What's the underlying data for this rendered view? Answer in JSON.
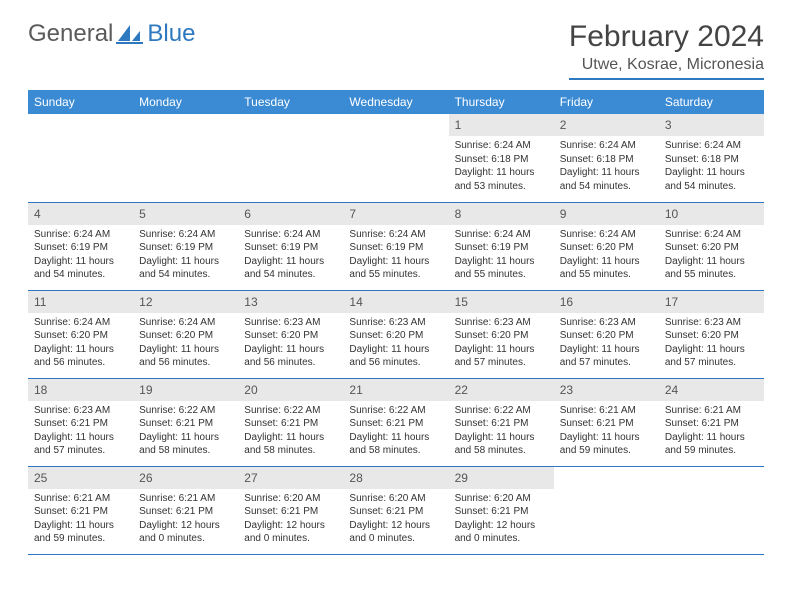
{
  "logo": {
    "part1": "General",
    "part2": "Blue"
  },
  "title": "February 2024",
  "location": "Utwe, Kosrae, Micronesia",
  "colors": {
    "accent": "#3b8bd4",
    "underline": "#2e78c0",
    "dayHeaderBg": "#e8e8e8"
  },
  "dayHeaders": [
    "Sunday",
    "Monday",
    "Tuesday",
    "Wednesday",
    "Thursday",
    "Friday",
    "Saturday"
  ],
  "labels": {
    "sunrise": "Sunrise: ",
    "sunset": "Sunset: ",
    "daylight": "Daylight: "
  },
  "weeks": [
    [
      {
        "day": "",
        "sunrise": "",
        "sunset": "",
        "daylight": ""
      },
      {
        "day": "",
        "sunrise": "",
        "sunset": "",
        "daylight": ""
      },
      {
        "day": "",
        "sunrise": "",
        "sunset": "",
        "daylight": ""
      },
      {
        "day": "",
        "sunrise": "",
        "sunset": "",
        "daylight": ""
      },
      {
        "day": "1",
        "sunrise": "6:24 AM",
        "sunset": "6:18 PM",
        "daylight": "11 hours and 53 minutes."
      },
      {
        "day": "2",
        "sunrise": "6:24 AM",
        "sunset": "6:18 PM",
        "daylight": "11 hours and 54 minutes."
      },
      {
        "day": "3",
        "sunrise": "6:24 AM",
        "sunset": "6:18 PM",
        "daylight": "11 hours and 54 minutes."
      }
    ],
    [
      {
        "day": "4",
        "sunrise": "6:24 AM",
        "sunset": "6:19 PM",
        "daylight": "11 hours and 54 minutes."
      },
      {
        "day": "5",
        "sunrise": "6:24 AM",
        "sunset": "6:19 PM",
        "daylight": "11 hours and 54 minutes."
      },
      {
        "day": "6",
        "sunrise": "6:24 AM",
        "sunset": "6:19 PM",
        "daylight": "11 hours and 54 minutes."
      },
      {
        "day": "7",
        "sunrise": "6:24 AM",
        "sunset": "6:19 PM",
        "daylight": "11 hours and 55 minutes."
      },
      {
        "day": "8",
        "sunrise": "6:24 AM",
        "sunset": "6:19 PM",
        "daylight": "11 hours and 55 minutes."
      },
      {
        "day": "9",
        "sunrise": "6:24 AM",
        "sunset": "6:20 PM",
        "daylight": "11 hours and 55 minutes."
      },
      {
        "day": "10",
        "sunrise": "6:24 AM",
        "sunset": "6:20 PM",
        "daylight": "11 hours and 55 minutes."
      }
    ],
    [
      {
        "day": "11",
        "sunrise": "6:24 AM",
        "sunset": "6:20 PM",
        "daylight": "11 hours and 56 minutes."
      },
      {
        "day": "12",
        "sunrise": "6:24 AM",
        "sunset": "6:20 PM",
        "daylight": "11 hours and 56 minutes."
      },
      {
        "day": "13",
        "sunrise": "6:23 AM",
        "sunset": "6:20 PM",
        "daylight": "11 hours and 56 minutes."
      },
      {
        "day": "14",
        "sunrise": "6:23 AM",
        "sunset": "6:20 PM",
        "daylight": "11 hours and 56 minutes."
      },
      {
        "day": "15",
        "sunrise": "6:23 AM",
        "sunset": "6:20 PM",
        "daylight": "11 hours and 57 minutes."
      },
      {
        "day": "16",
        "sunrise": "6:23 AM",
        "sunset": "6:20 PM",
        "daylight": "11 hours and 57 minutes."
      },
      {
        "day": "17",
        "sunrise": "6:23 AM",
        "sunset": "6:20 PM",
        "daylight": "11 hours and 57 minutes."
      }
    ],
    [
      {
        "day": "18",
        "sunrise": "6:23 AM",
        "sunset": "6:21 PM",
        "daylight": "11 hours and 57 minutes."
      },
      {
        "day": "19",
        "sunrise": "6:22 AM",
        "sunset": "6:21 PM",
        "daylight": "11 hours and 58 minutes."
      },
      {
        "day": "20",
        "sunrise": "6:22 AM",
        "sunset": "6:21 PM",
        "daylight": "11 hours and 58 minutes."
      },
      {
        "day": "21",
        "sunrise": "6:22 AM",
        "sunset": "6:21 PM",
        "daylight": "11 hours and 58 minutes."
      },
      {
        "day": "22",
        "sunrise": "6:22 AM",
        "sunset": "6:21 PM",
        "daylight": "11 hours and 58 minutes."
      },
      {
        "day": "23",
        "sunrise": "6:21 AM",
        "sunset": "6:21 PM",
        "daylight": "11 hours and 59 minutes."
      },
      {
        "day": "24",
        "sunrise": "6:21 AM",
        "sunset": "6:21 PM",
        "daylight": "11 hours and 59 minutes."
      }
    ],
    [
      {
        "day": "25",
        "sunrise": "6:21 AM",
        "sunset": "6:21 PM",
        "daylight": "11 hours and 59 minutes."
      },
      {
        "day": "26",
        "sunrise": "6:21 AM",
        "sunset": "6:21 PM",
        "daylight": "12 hours and 0 minutes."
      },
      {
        "day": "27",
        "sunrise": "6:20 AM",
        "sunset": "6:21 PM",
        "daylight": "12 hours and 0 minutes."
      },
      {
        "day": "28",
        "sunrise": "6:20 AM",
        "sunset": "6:21 PM",
        "daylight": "12 hours and 0 minutes."
      },
      {
        "day": "29",
        "sunrise": "6:20 AM",
        "sunset": "6:21 PM",
        "daylight": "12 hours and 0 minutes."
      },
      {
        "day": "",
        "sunrise": "",
        "sunset": "",
        "daylight": ""
      },
      {
        "day": "",
        "sunrise": "",
        "sunset": "",
        "daylight": ""
      }
    ]
  ]
}
